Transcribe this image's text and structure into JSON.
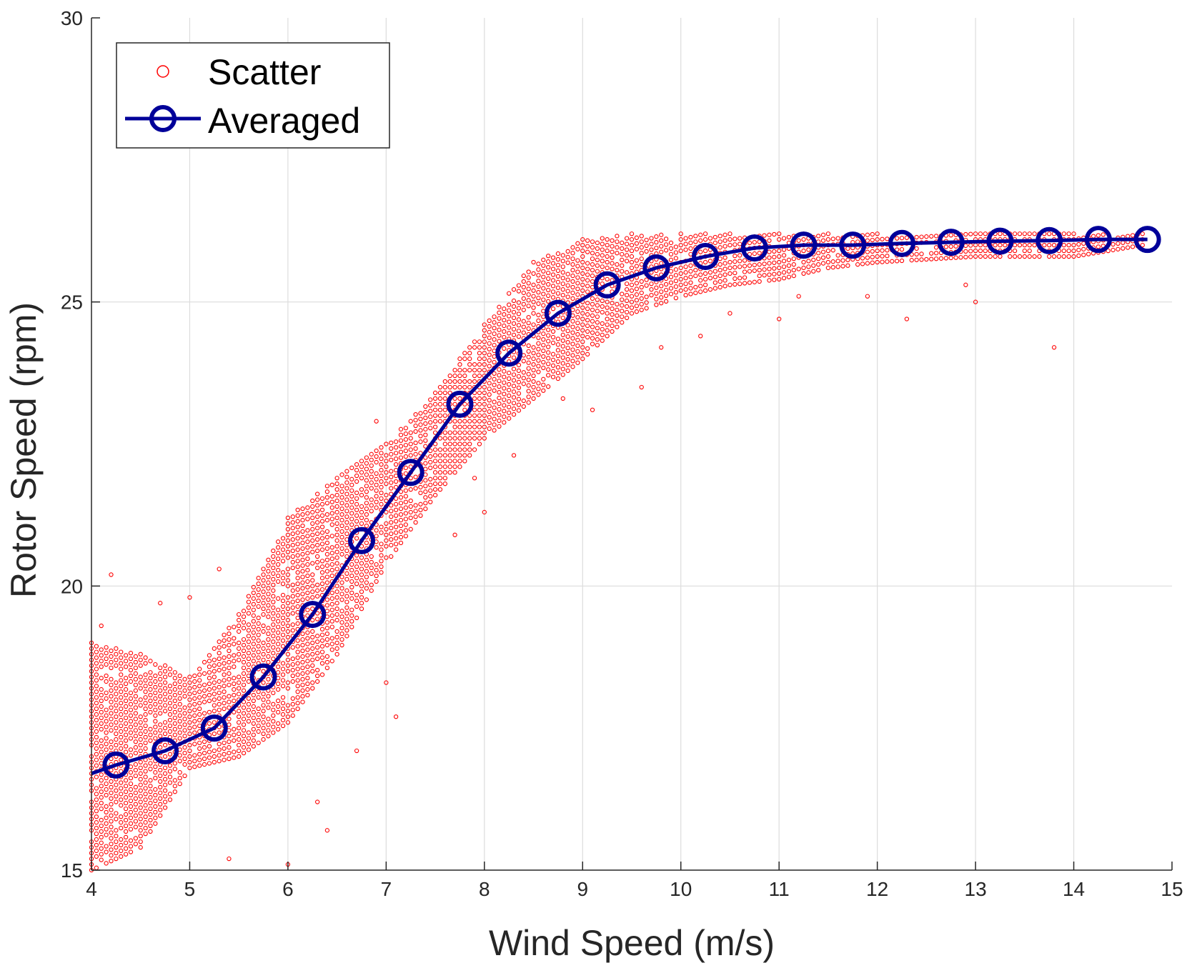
{
  "chart_data": {
    "type": "scatter",
    "xlabel": "Wind Speed (m/s)",
    "ylabel": "Rotor Speed  (rpm)",
    "xlim": [
      4,
      15
    ],
    "ylim": [
      15,
      30
    ],
    "xticks": [
      4,
      5,
      6,
      7,
      8,
      9,
      10,
      11,
      12,
      13,
      14,
      15
    ],
    "yticks": [
      15,
      20,
      25,
      30
    ],
    "grid": true,
    "legend": {
      "location": "top-left",
      "entries": [
        "Scatter",
        "Averaged"
      ]
    },
    "colors": {
      "scatter": "#ff0000",
      "averaged": "#000099",
      "grid": "#dcdcdc",
      "axis": "#262626"
    },
    "series": [
      {
        "name": "Scatter",
        "kind": "scatter",
        "marker": "circle-open",
        "description_of_bands": "dense vertical columns of points every ~0.05 m/s between a lower and upper rotor-speed envelope",
        "bands": [
          {
            "x": 4.0,
            "y_low": 15.0,
            "y_high": 19.0
          },
          {
            "x": 4.5,
            "y_low": 15.4,
            "y_high": 18.8
          },
          {
            "x": 5.0,
            "y_low": 16.8,
            "y_high": 18.4
          },
          {
            "x": 5.5,
            "y_low": 17.0,
            "y_high": 19.5
          },
          {
            "x": 6.0,
            "y_low": 17.6,
            "y_high": 21.2
          },
          {
            "x": 6.5,
            "y_low": 18.8,
            "y_high": 21.9
          },
          {
            "x": 7.0,
            "y_low": 20.4,
            "y_high": 22.5
          },
          {
            "x": 7.5,
            "y_low": 21.6,
            "y_high": 23.4
          },
          {
            "x": 8.0,
            "y_low": 22.6,
            "y_high": 24.6
          },
          {
            "x": 8.5,
            "y_low": 23.3,
            "y_high": 25.7
          },
          {
            "x": 9.0,
            "y_low": 24.0,
            "y_high": 26.1
          },
          {
            "x": 9.5,
            "y_low": 24.8,
            "y_high": 26.2
          },
          {
            "x": 10.0,
            "y_low": 25.1,
            "y_high": 26.2
          },
          {
            "x": 10.5,
            "y_low": 25.3,
            "y_high": 26.2
          },
          {
            "x": 11.0,
            "y_low": 25.4,
            "y_high": 26.2
          },
          {
            "x": 11.5,
            "y_low": 25.6,
            "y_high": 26.2
          },
          {
            "x": 12.0,
            "y_low": 25.7,
            "y_high": 26.2
          },
          {
            "x": 13.0,
            "y_low": 25.8,
            "y_high": 26.2
          },
          {
            "x": 14.0,
            "y_low": 25.8,
            "y_high": 26.2
          },
          {
            "x": 14.7,
            "y_low": 26.0,
            "y_high": 26.2
          }
        ],
        "outliers": [
          [
            4.2,
            20.2
          ],
          [
            4.1,
            19.3
          ],
          [
            4.7,
            19.7
          ],
          [
            5.0,
            19.8
          ],
          [
            5.4,
            15.2
          ],
          [
            5.3,
            20.3
          ],
          [
            6.0,
            15.1
          ],
          [
            6.3,
            16.2
          ],
          [
            6.4,
            15.7
          ],
          [
            6.9,
            22.9
          ],
          [
            6.7,
            17.1
          ],
          [
            7.0,
            18.3
          ],
          [
            7.1,
            17.7
          ],
          [
            7.7,
            20.9
          ],
          [
            8.0,
            21.3
          ],
          [
            7.9,
            21.9
          ],
          [
            8.3,
            22.3
          ],
          [
            8.8,
            23.3
          ],
          [
            9.1,
            23.1
          ],
          [
            9.6,
            23.5
          ],
          [
            9.8,
            24.2
          ],
          [
            10.2,
            24.4
          ],
          [
            10.5,
            24.8
          ],
          [
            11.0,
            24.7
          ],
          [
            11.2,
            25.1
          ],
          [
            11.9,
            25.1
          ],
          [
            12.3,
            24.7
          ],
          [
            12.9,
            25.3
          ],
          [
            13.0,
            25.0
          ],
          [
            13.8,
            24.2
          ]
        ]
      },
      {
        "name": "Averaged",
        "kind": "line",
        "marker": "circle-open",
        "x": [
          4.0,
          4.25,
          4.75,
          5.25,
          5.75,
          6.25,
          6.75,
          7.25,
          7.75,
          8.25,
          8.75,
          9.25,
          9.75,
          10.25,
          10.75,
          11.25,
          11.75,
          12.25,
          12.75,
          13.25,
          13.75,
          14.25,
          14.75
        ],
        "y": [
          16.7,
          16.85,
          17.1,
          17.5,
          18.4,
          19.5,
          20.8,
          22.0,
          23.2,
          24.1,
          24.8,
          25.3,
          25.6,
          25.8,
          25.95,
          26.0,
          26.0,
          26.03,
          26.05,
          26.07,
          26.08,
          26.1,
          26.1
        ]
      }
    ]
  }
}
